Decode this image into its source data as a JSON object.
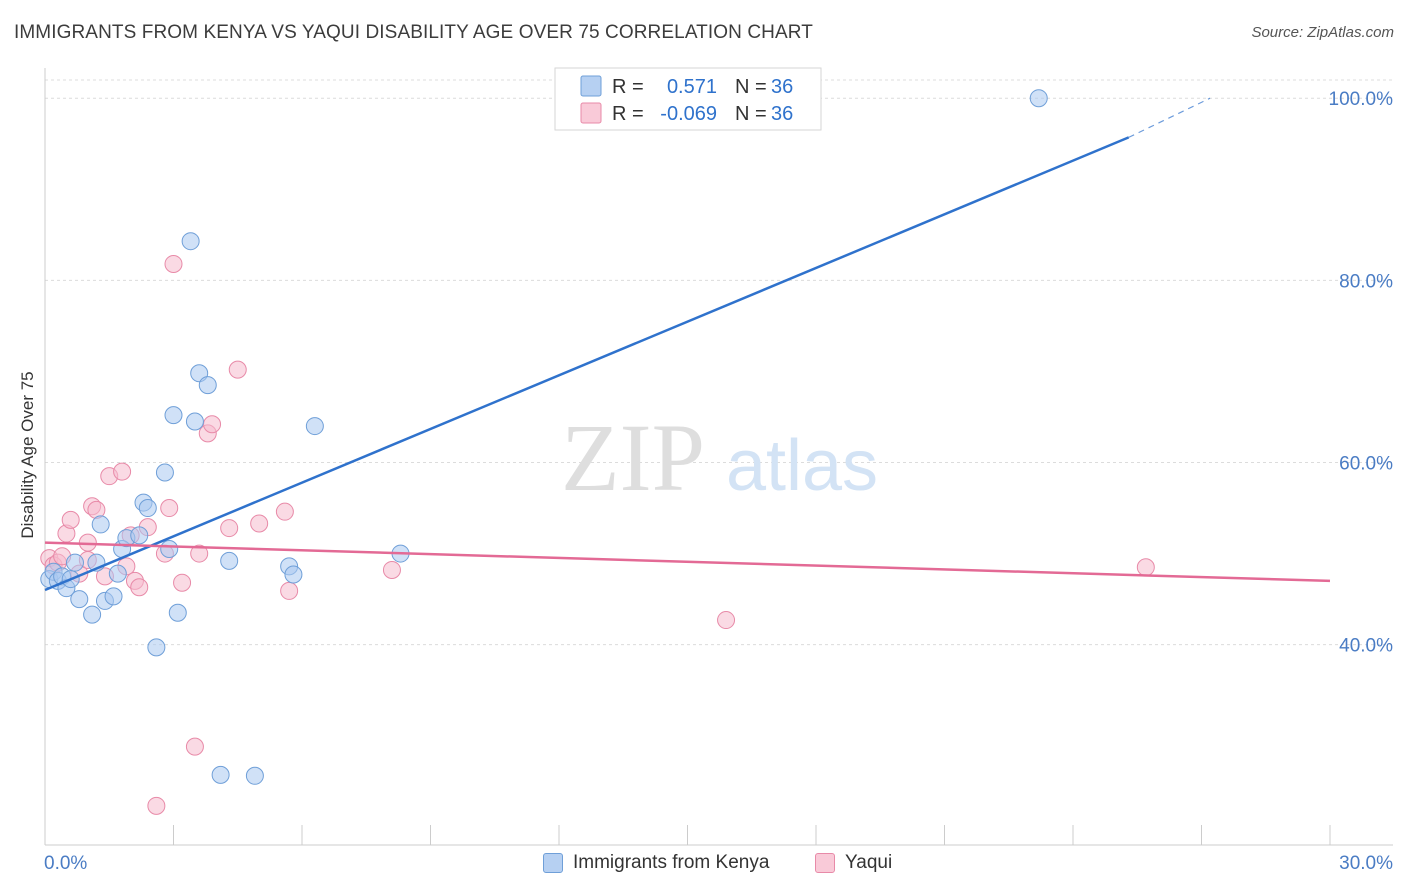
{
  "title": "IMMIGRANTS FROM KENYA VS YAQUI DISABILITY AGE OVER 75 CORRELATION CHART",
  "source": "Source: ZipAtlas.com",
  "watermark": {
    "zip": "ZIP",
    "atlas": "atlas"
  },
  "colors": {
    "blue_fill": "#a9c8f0",
    "blue_stroke": "#6f9fd8",
    "blue_line": "#2f72cc",
    "pink_fill": "#f6bccd",
    "pink_stroke": "#e88aa8",
    "pink_line": "#e36a95",
    "tick_label": "#4a7cc4",
    "grid": "#dcdcdc"
  },
  "legend": {
    "rows": [
      {
        "r_label": "R = ",
        "r_value": "0.571",
        "n_label": "N = ",
        "n_value": "36"
      },
      {
        "r_label": "R = ",
        "r_value": "-0.069",
        "n_label": "N = ",
        "n_value": "36"
      }
    ]
  },
  "bottom_legend": [
    "Immigrants from Kenya",
    "Yaqui"
  ],
  "chart_data": {
    "type": "scatter",
    "title": "IMMIGRANTS FROM KENYA VS YAQUI DISABILITY AGE OVER 75 CORRELATION CHART",
    "xlabel": "",
    "ylabel": "Disability Age Over 75",
    "xlim": [
      0,
      30
    ],
    "ylim": [
      18,
      102
    ],
    "x_tick_labels": [
      "0.0%",
      "30.0%"
    ],
    "y_ticks": [
      40,
      60,
      80,
      100
    ],
    "y_tick_labels": [
      "40.0%",
      "60.0%",
      "80.0%",
      "100.0%"
    ],
    "grid": true,
    "legend_position": "top-center",
    "series": [
      {
        "name": "Immigrants from Kenya",
        "r": 0.571,
        "n": 36,
        "trend": {
          "x0": 0,
          "y0": 46.0,
          "x1": 25.3,
          "y1": 95.7,
          "dashed_to_x": 27.2,
          "dashed_to_y": 100.0
        },
        "points": [
          [
            0.1,
            47.2
          ],
          [
            0.2,
            48.0
          ],
          [
            0.3,
            47.0
          ],
          [
            0.4,
            47.5
          ],
          [
            0.5,
            46.2
          ],
          [
            0.6,
            47.2
          ],
          [
            0.7,
            49.0
          ],
          [
            0.8,
            45.0
          ],
          [
            1.1,
            43.3
          ],
          [
            1.2,
            49.0
          ],
          [
            1.3,
            53.2
          ],
          [
            1.4,
            44.8
          ],
          [
            1.6,
            45.3
          ],
          [
            1.7,
            47.8
          ],
          [
            1.8,
            50.5
          ],
          [
            1.9,
            51.7
          ],
          [
            2.2,
            52.0
          ],
          [
            2.3,
            55.6
          ],
          [
            2.4,
            55.0
          ],
          [
            2.6,
            39.7
          ],
          [
            2.8,
            58.9
          ],
          [
            2.9,
            50.5
          ],
          [
            3.0,
            65.2
          ],
          [
            3.1,
            43.5
          ],
          [
            3.4,
            84.3
          ],
          [
            3.5,
            64.5
          ],
          [
            3.6,
            69.8
          ],
          [
            3.8,
            68.5
          ],
          [
            4.1,
            25.7
          ],
          [
            4.3,
            49.2
          ],
          [
            4.9,
            25.6
          ],
          [
            5.7,
            48.6
          ],
          [
            5.8,
            47.7
          ],
          [
            6.3,
            64.0
          ],
          [
            8.3,
            50.0
          ],
          [
            23.2,
            100.0
          ]
        ]
      },
      {
        "name": "Yaqui",
        "r": -0.069,
        "n": 36,
        "trend": {
          "x0": 0,
          "y0": 51.2,
          "x1": 30,
          "y1": 47.0
        },
        "points": [
          [
            0.1,
            49.5
          ],
          [
            0.2,
            48.7
          ],
          [
            0.3,
            49.0
          ],
          [
            0.4,
            49.7
          ],
          [
            0.5,
            52.2
          ],
          [
            0.6,
            53.7
          ],
          [
            0.8,
            47.8
          ],
          [
            1.0,
            49.3
          ],
          [
            1.0,
            51.2
          ],
          [
            1.1,
            55.2
          ],
          [
            1.2,
            54.8
          ],
          [
            1.4,
            47.5
          ],
          [
            1.5,
            58.5
          ],
          [
            1.8,
            59.0
          ],
          [
            1.9,
            48.6
          ],
          [
            2.0,
            52.0
          ],
          [
            2.1,
            47.0
          ],
          [
            2.2,
            46.3
          ],
          [
            2.4,
            52.9
          ],
          [
            2.8,
            50.0
          ],
          [
            2.9,
            55.0
          ],
          [
            3.0,
            81.8
          ],
          [
            3.2,
            46.8
          ],
          [
            3.5,
            28.8
          ],
          [
            3.6,
            50.0
          ],
          [
            3.8,
            63.2
          ],
          [
            3.9,
            64.2
          ],
          [
            4.3,
            52.8
          ],
          [
            4.5,
            70.2
          ],
          [
            5.0,
            53.3
          ],
          [
            5.6,
            54.6
          ],
          [
            5.7,
            45.9
          ],
          [
            8.1,
            48.2
          ],
          [
            2.6,
            22.3
          ],
          [
            15.9,
            42.7
          ],
          [
            25.7,
            48.5
          ]
        ]
      }
    ]
  }
}
